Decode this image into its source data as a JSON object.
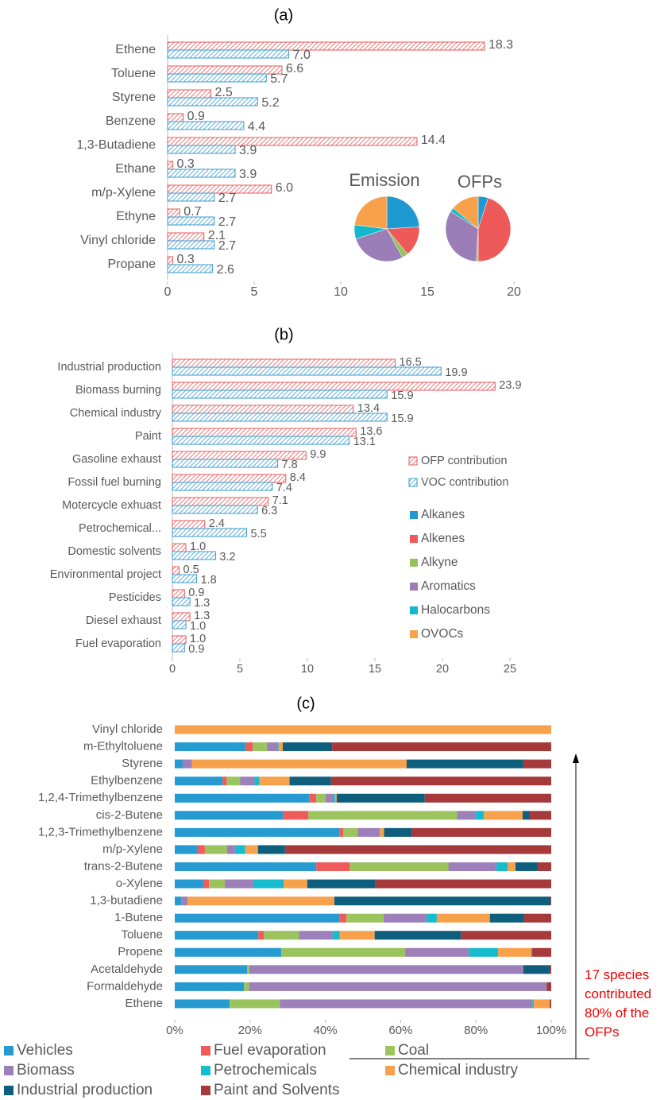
{
  "chart_data": [
    {
      "type": "bar",
      "orientation": "horizontal",
      "title": "(a)",
      "categories": [
        "Ethene",
        "Toluene",
        "Styrene",
        "Benzene",
        "1,3-Butadiene",
        "Ethane",
        "m/p-Xylene",
        "Ethyne",
        "Vinyl chloride",
        "Propane"
      ],
      "series": [
        {
          "color": "#e8585a",
          "values": [
            18.3,
            6.6,
            2.5,
            0.9,
            14.4,
            0.3,
            6.0,
            0.7,
            2.1,
            0.3
          ],
          "value_labels": [
            "18.3",
            "6.6",
            "2.5",
            "0.9",
            "14.4",
            "0.3",
            "6.0",
            "0.7",
            "2.1",
            "0.3"
          ]
        },
        {
          "color": "#3a9bd0",
          "values": [
            7.0,
            5.7,
            5.2,
            4.4,
            3.9,
            3.9,
            2.7,
            2.7,
            2.7,
            2.6
          ],
          "value_labels": [
            "7.0",
            "5.7",
            "5.2",
            "4.4",
            "3.9",
            "3.9",
            "2.7",
            "2.7",
            "2.7",
            "2.6"
          ]
        }
      ],
      "xlim": [
        0,
        20
      ],
      "xticks": [
        0,
        5,
        10,
        15,
        20
      ],
      "pies": {
        "type": "pie",
        "categories": [
          "Alkanes",
          "Alkenes",
          "Alkyne",
          "Aromatics",
          "Halocarbons",
          "OVOCs"
        ],
        "colors": [
          "#1f9ad1",
          "#ee5a5a",
          "#94c25b",
          "#9b7db8",
          "#13b8cc",
          "#f7a24a"
        ],
        "series": [
          {
            "name": "Emission",
            "values": [
              24,
              15,
              3,
              28,
              7,
              23
            ]
          },
          {
            "name": "OFPs",
            "values": [
              5,
              45,
              1,
              33,
              2,
              14
            ]
          }
        ]
      }
    },
    {
      "type": "bar",
      "orientation": "horizontal",
      "title": "(b)",
      "categories": [
        "Industrial production",
        "Biomass burning",
        "Chemical industry",
        "Paint",
        "Gasoline exhaust",
        "Fossil fuel burning",
        "Motercycle exhuast",
        "Petrochemical...",
        "Domestic solvents",
        "Environmental project",
        "Pesticides",
        "Diesel exhaust",
        "Fuel evaporation"
      ],
      "series": [
        {
          "name": "OFP contribution",
          "color": "#e8585a",
          "values": [
            16.5,
            23.9,
            13.4,
            13.6,
            9.9,
            8.4,
            7.1,
            2.4,
            1.0,
            0.5,
            0.9,
            1.3,
            1.0
          ],
          "value_labels": [
            "16.5",
            "23.9",
            "13.4",
            "13.6",
            "9.9",
            "8.4",
            "7.1",
            "2.4",
            "1.0",
            "0.5",
            "0.9",
            "1.3",
            "1.0"
          ]
        },
        {
          "name": "VOC contribution",
          "color": "#3a9bd0",
          "values": [
            19.9,
            15.9,
            15.9,
            13.1,
            7.8,
            7.4,
            6.3,
            5.5,
            3.2,
            1.8,
            1.3,
            1.0,
            0.9
          ],
          "value_labels": [
            "19.9",
            "15.9",
            "15.9",
            "13.1",
            "7.8",
            "7.4",
            "6.3",
            "5.5",
            "3.2",
            "1.8",
            "1.3",
            "1.0",
            "0.9"
          ]
        }
      ],
      "xlim": [
        0,
        25
      ],
      "xticks": [
        0,
        5,
        10,
        15,
        20,
        25
      ]
    },
    {
      "type": "bar",
      "orientation": "horizontal",
      "stacked": true,
      "title": "(c)",
      "categories": [
        "Vinyl chloride",
        "m-Ethyltoluene",
        "Styrene",
        "Ethylbenzene",
        "1,2,4-Trimethylbenzene",
        "cis-2-Butene",
        "1,2,3-Trimethylbenzene",
        "m/p-Xylene",
        "trans-2-Butene",
        "o-Xylene",
        "1,3-butadiene",
        "1-Butene",
        "Toluene",
        "Propene",
        "Acetaldehyde ",
        "Formaldehyde",
        "Ethene"
      ],
      "series": [
        {
          "name": "Vehicles",
          "color": "#259bd1",
          "values": [
            0,
            18.8,
            2.1,
            12.7,
            35.7,
            28.7,
            43.7,
            6.1,
            37.6,
            7.6,
            1.7,
            43.7,
            22.2,
            28.3,
            19.2,
            18.4,
            14.6
          ]
        },
        {
          "name": "Fuel evaporation",
          "color": "#ef5b5b",
          "values": [
            0,
            1.9,
            0,
            1.1,
            1.9,
            6.8,
            1.1,
            1.9,
            8.9,
            1.5,
            0,
            1.9,
            1.5,
            0,
            0,
            0,
            0
          ]
        },
        {
          "name": "Coal",
          "color": "#9bc45e",
          "values": [
            0,
            3.8,
            0,
            3.6,
            2.5,
            39.5,
            3.8,
            5.9,
            26.2,
            4.2,
            0,
            9.9,
            9.3,
            32.9,
            0.6,
            1.3,
            13.3
          ]
        },
        {
          "name": "Biomass",
          "color": "#9d7fba",
          "values": [
            0,
            2.7,
            2.5,
            3.8,
            2.1,
            4.8,
            5.7,
            2.1,
            12.7,
            7.6,
            1.7,
            11.4,
            8.9,
            16.9,
            72.8,
            79.1,
            67.1
          ]
        },
        {
          "name": "Petrochemicals",
          "color": "#15bccd",
          "values": [
            0,
            0.4,
            0,
            1.3,
            0.4,
            2.3,
            0.2,
            2.7,
            3.0,
            8.0,
            0,
            2.7,
            1.9,
            7.8,
            0,
            0,
            0.4
          ]
        },
        {
          "name": "Chemical industry",
          "color": "#f8a14c",
          "values": [
            100,
            1.1,
            57.0,
            8.0,
            0.4,
            10.3,
            1.1,
            3.4,
            2.1,
            6.3,
            39.0,
            14.1,
            9.3,
            8.9,
            0,
            0,
            4.2
          ]
        },
        {
          "name": "Industrial production",
          "color": "#0e5f7e",
          "values": [
            0,
            13.1,
            31.0,
            11.0,
            23.4,
            1.9,
            7.4,
            7.2,
            5.9,
            18.1,
            57.4,
            9.1,
            23.0,
            0.2,
            7.0,
            0,
            0
          ]
        },
        {
          "name": "Paint and Solvents",
          "color": "#a63a3a",
          "values": [
            0,
            58.2,
            7.4,
            58.5,
            33.6,
            5.7,
            37.0,
            70.7,
            3.6,
            46.7,
            0.2,
            7.2,
            23.9,
            5.0,
            0.4,
            1.2,
            0.4
          ]
        }
      ],
      "xlim": [
        0,
        100
      ],
      "xticks": [
        {
          "value": 0,
          "label": "0%"
        },
        {
          "value": 20,
          "label": "20%"
        },
        {
          "value": 40,
          "label": "40%"
        },
        {
          "value": 60,
          "label": "60%"
        },
        {
          "value": 80,
          "label": "80%"
        },
        {
          "value": 100,
          "label": "100%"
        }
      ],
      "annotation": "17 species contributed 80% of the OFPs"
    }
  ]
}
